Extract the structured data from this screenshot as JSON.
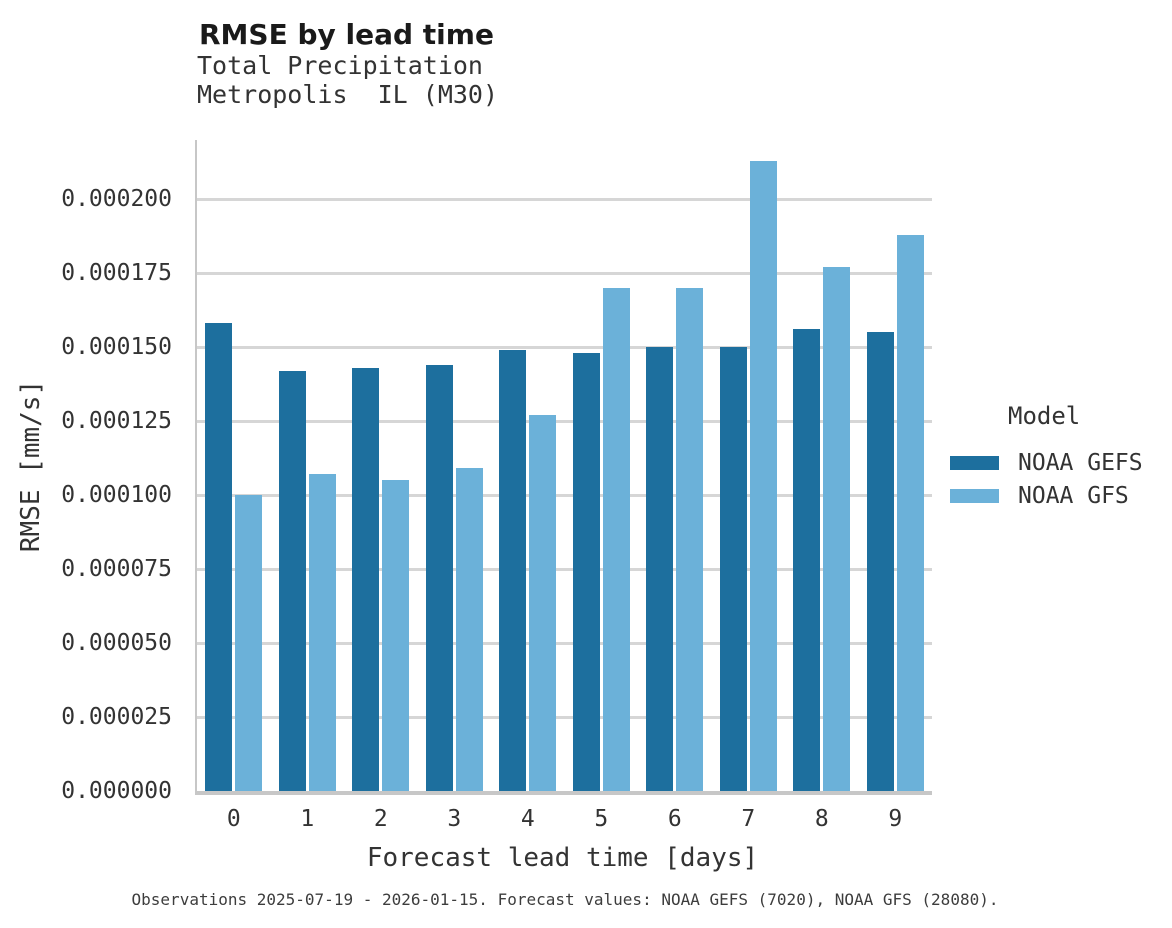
{
  "chart_data": {
    "type": "bar",
    "title": "RMSE by lead time",
    "subtitle": [
      "Total Precipitation",
      "Metropolis  IL (M30)"
    ],
    "categories": [
      "0",
      "1",
      "2",
      "3",
      "4",
      "5",
      "6",
      "7",
      "8",
      "9"
    ],
    "series": [
      {
        "name": "NOAA GEFS",
        "color": "#1d6f9e",
        "values": [
          0.000158,
          0.000142,
          0.000143,
          0.000144,
          0.000149,
          0.000148,
          0.00015,
          0.00015,
          0.000156,
          0.000155
        ]
      },
      {
        "name": "NOAA GFS",
        "color": "#6bb1d9",
        "values": [
          0.0001,
          0.000107,
          0.000105,
          0.000109,
          0.000127,
          0.00017,
          0.00017,
          0.000213,
          0.000177,
          0.000188
        ]
      }
    ],
    "xlabel": "Forecast lead time [days]",
    "ylabel": "RMSE [mm/s]",
    "ylim": [
      0,
      0.00022
    ],
    "yticks": [
      "0.000000",
      "0.000025",
      "0.000050",
      "0.000075",
      "0.000100",
      "0.000125",
      "0.000150",
      "0.000175",
      "0.000200"
    ],
    "grid": "horizontal",
    "legend": {
      "title": "Model",
      "position": "right"
    },
    "caption": "Observations 2025-07-19 - 2026-01-15. Forecast values: NOAA GEFS (7020), NOAA GFS (28080)."
  }
}
